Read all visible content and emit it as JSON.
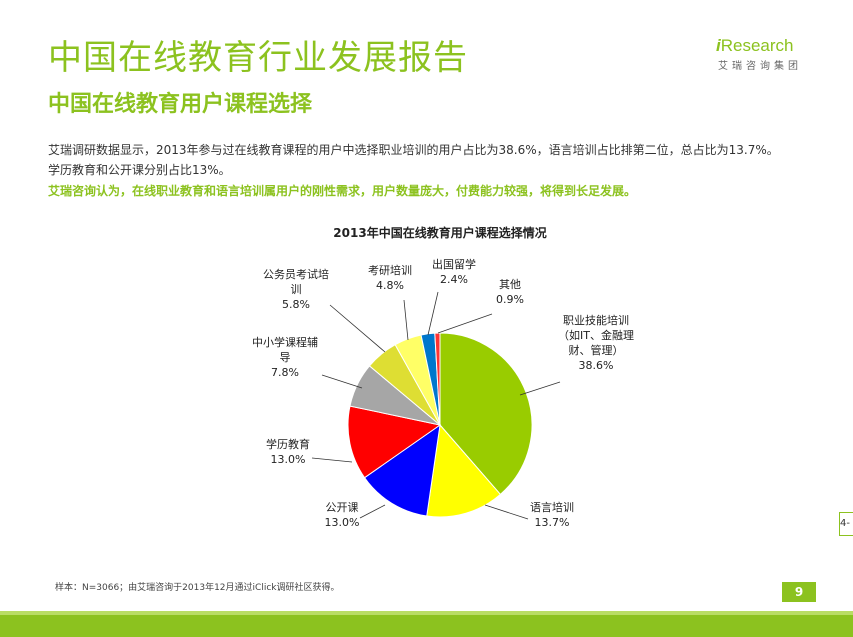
{
  "header": {
    "title": "中国在线教育行业发展报告",
    "subtitle": "中国在线教育用户课程选择"
  },
  "logo": {
    "brand_prefix": "i",
    "brand_name": "Research",
    "brand_cn": "艾瑞咨询集团"
  },
  "text": {
    "description": "艾瑞调研数据显示，2013年参与过在线教育课程的用户中选择职业培训的用户占比为38.6%，语言培训占比排第二位，总占比为13.7%。学历教育和公开课分别占比13%。",
    "highlight": "艾瑞咨询认为，在线职业教育和语言培训属用户的刚性需求，用户数量庞大，付费能力较强，将得到长足发展。"
  },
  "chart_data": {
    "type": "pie",
    "title": "2013年中国在线教育用户课程选择情况",
    "start_angle_deg": 0,
    "direction": "clockwise",
    "slices": [
      {
        "label": [
          "职业技能培训",
          "（如IT、金融理",
          "财、管理）"
        ],
        "value": 38.6,
        "value_label": "38.6%",
        "color": "#99cc00"
      },
      {
        "label": [
          "语言培训"
        ],
        "value": 13.7,
        "value_label": "13.7%",
        "color": "#ffff00"
      },
      {
        "label": [
          "公开课"
        ],
        "value": 13.0,
        "value_label": "13.0%",
        "color": "#0000ff"
      },
      {
        "label": [
          "学历教育"
        ],
        "value": 13.0,
        "value_label": "13.0%",
        "color": "#ff0000"
      },
      {
        "label": [
          "中小学课程辅",
          "导"
        ],
        "value": 7.8,
        "value_label": "7.8%",
        "color": "#a6a6a6"
      },
      {
        "label": [
          "公务员考试培",
          "训"
        ],
        "value": 5.8,
        "value_label": "5.8%",
        "color": "#dede33"
      },
      {
        "label": [
          "考研培训"
        ],
        "value": 4.8,
        "value_label": "4.8%",
        "color": "#ffff66"
      },
      {
        "label": [
          "出国留学"
        ],
        "value": 2.4,
        "value_label": "2.4%",
        "color": "#0077cc"
      },
      {
        "label": [
          "其他"
        ],
        "value": 0.9,
        "value_label": "0.9%",
        "color": "#ff3333"
      }
    ]
  },
  "footer": {
    "source": "样本：N=3066；由艾瑞咨询于2013年12月通过iClick调研社区获得。",
    "page_number": "9",
    "side_tab": "4-"
  }
}
